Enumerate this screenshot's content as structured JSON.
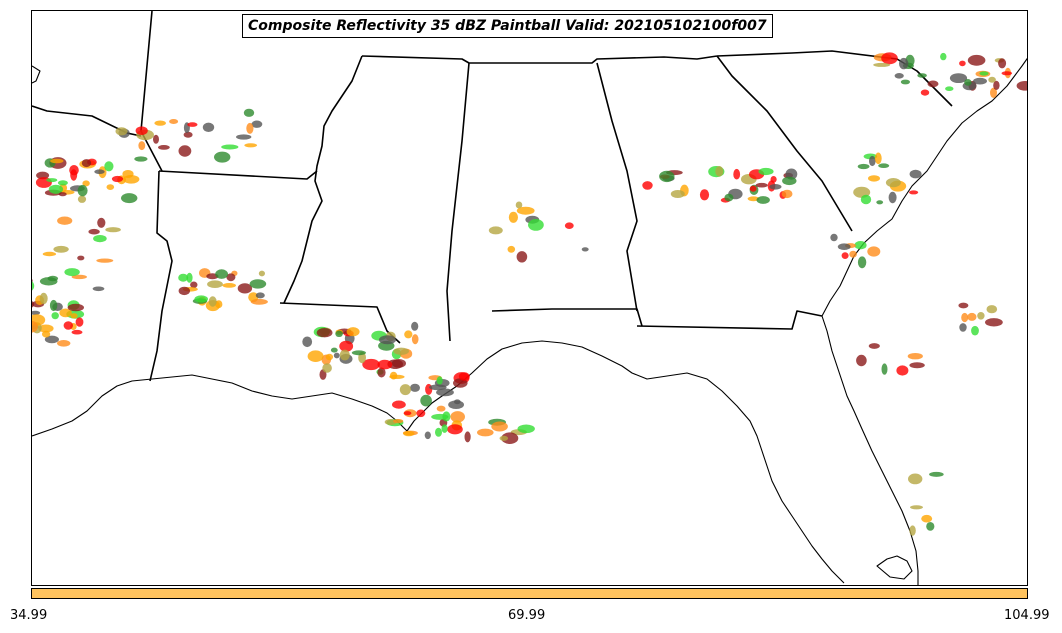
{
  "title": "Composite Reflectivity 35 dBZ Paintball Valid: 202105102100f007",
  "colorbar": {
    "color": "#ffc35e",
    "tick_labels": [
      "34.99",
      "69.99",
      "104.99"
    ],
    "range": [
      34.99,
      104.99
    ]
  },
  "paintball_colors": [
    "#8b1a1a",
    "#ff0000",
    "#ff8c1a",
    "#ffa500",
    "#b5a642",
    "#2e8b2e",
    "#33dd33",
    "#555555"
  ]
}
